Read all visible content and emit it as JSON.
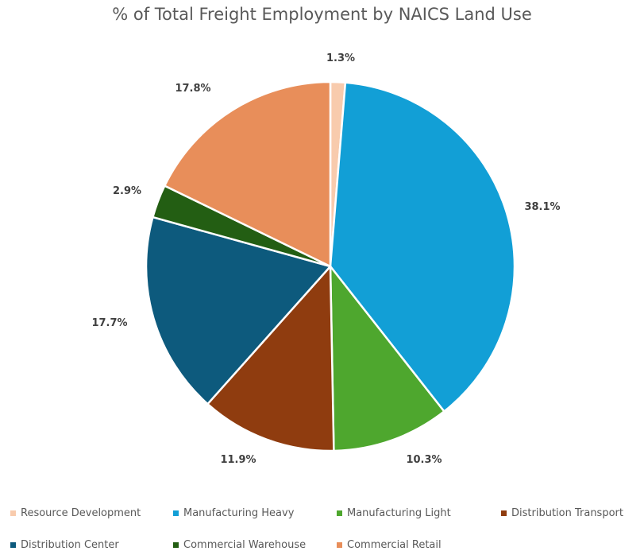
{
  "chart_data": {
    "type": "pie",
    "title": "% of Total Freight Employment by NAICS Land Use",
    "categories": [
      "Resource Development",
      "Manufacturing Heavy",
      "Manufacturing Light",
      "Distribution Transport",
      "Distribution Center",
      "Commercial Warehouse",
      "Commercial Retail"
    ],
    "values": [
      1.3,
      38.1,
      10.3,
      11.9,
      17.7,
      2.9,
      17.8
    ],
    "data_labels": [
      "1.3%",
      "38.1%",
      "10.3%",
      "11.9%",
      "17.7%",
      "2.9%",
      "17.8%"
    ],
    "colors": [
      "#F8CBAD",
      "#129FD6",
      "#4EA72E",
      "#8F3C0F",
      "#0D5A7D",
      "#235E13",
      "#E88E5A"
    ],
    "legend_position": "bottom"
  }
}
